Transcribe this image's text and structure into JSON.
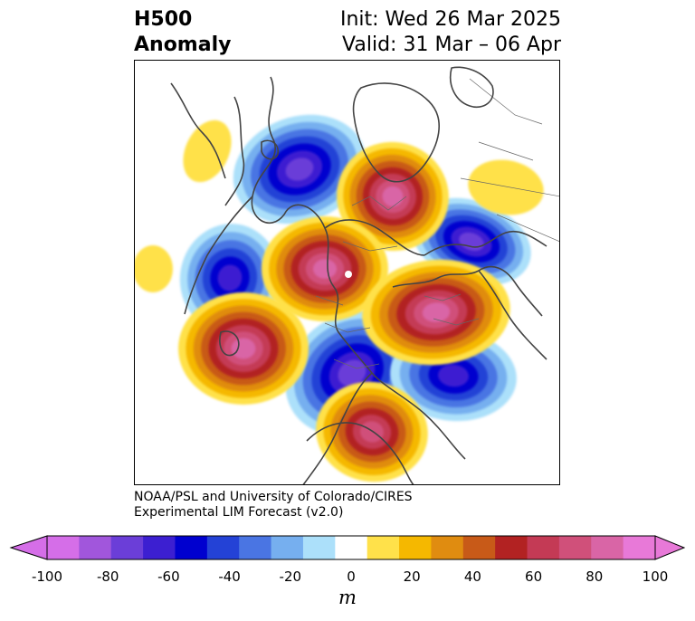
{
  "title": {
    "left_line1": "H500",
    "left_line2": "Anomaly",
    "right_line1": "Init: Wed 26 Mar 2025",
    "right_line2": "Valid: 31 Mar – 06 Apr"
  },
  "credit": {
    "line1": "NOAA/PSL and University of Colorado/CIRES",
    "line2": "Experimental LIM Forecast (v2.0)"
  },
  "colorbar": {
    "unit": "m",
    "tick_labels": [
      "-100",
      "-80",
      "-60",
      "-40",
      "-20",
      "0",
      "20",
      "40",
      "60",
      "80",
      "100"
    ],
    "levels": [
      -100,
      -90,
      -80,
      -70,
      -60,
      -50,
      -40,
      -30,
      -20,
      -10,
      10,
      20,
      30,
      40,
      50,
      60,
      70,
      80,
      90,
      100
    ],
    "colors": [
      "#d56ee8",
      "#a156dc",
      "#6b3ed8",
      "#3c1fd1",
      "#0000cf",
      "#2442d6",
      "#4a75e3",
      "#76afef",
      "#ace0fa",
      "#ffffff",
      "#ffe14a",
      "#f5b800",
      "#e08c10",
      "#c85a18",
      "#b22222",
      "#c43a55",
      "#d0507a",
      "#d965a6",
      "#e879d8"
    ],
    "extend_min_color": "#d56ee8",
    "extend_max_color": "#e879d8"
  },
  "map": {
    "projection": "polar-stereographic-north",
    "coastline_color": "#444444",
    "border_color": "#555555"
  }
}
